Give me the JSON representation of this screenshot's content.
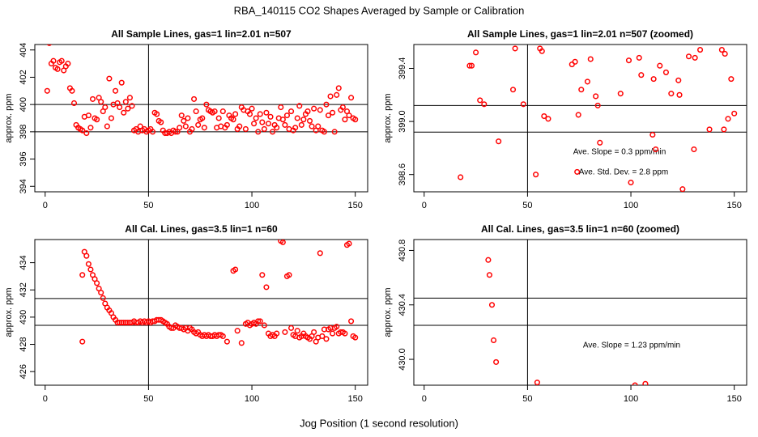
{
  "title": "RBA_140115 CO2 Shapes Averaged by Sample or Calibration",
  "x_label": "Jog Position (1 second resolution)",
  "chart_data": [
    {
      "type": "scatter",
      "title": "All Sample Lines, gas=1 lin=2.01 n=507",
      "y_label": "approx. ppm",
      "color": "#ff0000",
      "xlim": [
        -5,
        156
      ],
      "xticks": [
        0,
        50,
        100,
        150
      ],
      "ylim": [
        393.6,
        404.4
      ],
      "yticks": [
        394,
        396,
        398,
        400,
        402,
        404
      ],
      "hlines": [
        398,
        400
      ],
      "vlines": [
        50
      ],
      "x": [
        1,
        2,
        3,
        4,
        5,
        6,
        7,
        8,
        9,
        10,
        11,
        12,
        13,
        14,
        15,
        16,
        17,
        18,
        19,
        20,
        21,
        22,
        23,
        24,
        25,
        26,
        27,
        28,
        29,
        30,
        31,
        32,
        33,
        34,
        35,
        36,
        37,
        38,
        39,
        40,
        41,
        42,
        43,
        44,
        45,
        46,
        47,
        48,
        49,
        50,
        51,
        52,
        53,
        54,
        55,
        56,
        57,
        58,
        59,
        60,
        61,
        62,
        63,
        64,
        65,
        66,
        67,
        68,
        69,
        70,
        71,
        72,
        73,
        74,
        75,
        76,
        77,
        78,
        79,
        80,
        81,
        82,
        83,
        84,
        85,
        86,
        87,
        88,
        89,
        90,
        91,
        92,
        93,
        94,
        95,
        96,
        97,
        98,
        99,
        100,
        101,
        102,
        103,
        104,
        105,
        106,
        107,
        108,
        109,
        110,
        111,
        112,
        113,
        114,
        115,
        116,
        117,
        118,
        119,
        120,
        121,
        122,
        123,
        124,
        125,
        126,
        127,
        128,
        129,
        130,
        131,
        132,
        133,
        134,
        135,
        136,
        137,
        138,
        139,
        140,
        141,
        142,
        143,
        144,
        145,
        146,
        147,
        148,
        149,
        150
      ],
      "values": [
        401.0,
        404.5,
        403.0,
        403.2,
        402.7,
        402.6,
        403.1,
        403.2,
        402.5,
        402.8,
        403.0,
        401.2,
        401.0,
        400.1,
        398.5,
        398.3,
        398.2,
        398.1,
        399.1,
        397.9,
        399.2,
        398.3,
        400.4,
        399.0,
        398.9,
        400.5,
        400.2,
        399.5,
        399.8,
        398.4,
        401.9,
        399.0,
        400.0,
        401.0,
        400.1,
        399.8,
        401.6,
        399.4,
        400.2,
        399.7,
        400.5,
        399.9,
        398.1,
        398.2,
        398.0,
        398.4,
        398.1,
        398.2,
        398.0,
        398.1,
        398.2,
        398.0,
        399.4,
        399.3,
        398.8,
        398.7,
        398.1,
        397.9,
        397.9,
        398.0,
        397.9,
        398.1,
        398.0,
        398.0,
        398.3,
        399.2,
        398.8,
        398.4,
        399.0,
        398.0,
        398.2,
        400.4,
        399.5,
        398.5,
        398.9,
        399.0,
        398.3,
        400.0,
        399.6,
        399.5,
        399.4,
        399.5,
        398.3,
        399.0,
        398.4,
        399.5,
        398.3,
        398.5,
        399.2,
        399.0,
        398.9,
        399.3,
        398.2,
        398.4,
        399.8,
        399.6,
        398.2,
        399.5,
        399.3,
        399.7,
        398.6,
        399.0,
        398.0,
        399.3,
        398.7,
        398.2,
        399.4,
        398.6,
        399.1,
        398.0,
        398.5,
        398.3,
        399.0,
        399.8,
        398.9,
        398.5,
        399.2,
        398.2,
        399.5,
        398.1,
        398.3,
        399.0,
        399.9,
        398.5,
        398.9,
        399.3,
        399.5,
        398.8,
        398.4,
        399.7,
        398.1,
        398.4,
        399.6,
        398.1,
        398.0,
        400.0,
        399.2,
        400.6,
        399.4,
        398.0,
        400.7,
        401.2,
        399.6,
        399.8,
        398.9,
        399.5,
        399.2,
        400.5,
        399.0,
        398.9
      ]
    },
    {
      "type": "scatter",
      "title": "All Sample Lines, gas=1 lin=2.01 n=507 (zoomed)",
      "y_label": "approx. ppm",
      "color": "#ff0000",
      "xlim": [
        -5,
        156
      ],
      "xticks": [
        0,
        50,
        100,
        150
      ],
      "ylim": [
        398.47,
        399.58
      ],
      "yticks": [
        398.6,
        {
          "value": 399,
          "label": "399.0"
        },
        399.4
      ],
      "hlines": [
        398.92,
        399.12
      ],
      "vlines": [
        50
      ],
      "annotations": [
        "Ave. Slope = 0.3 ppm/min",
        "Ave. Std. Dev. = 2.8 ppm"
      ],
      "x": [
        17.6,
        22,
        23,
        25,
        27,
        29,
        36,
        43,
        44,
        48,
        54,
        56,
        57,
        58,
        60,
        71.5,
        73,
        74.6,
        76,
        74,
        79,
        80.5,
        83,
        84,
        85,
        95,
        99,
        100,
        104,
        105,
        110.5,
        111,
        112,
        114,
        117,
        119.5,
        123,
        123.5,
        125,
        130.5,
        131,
        133.5,
        138,
        144,
        145.5,
        145,
        147,
        148.5,
        150,
        128
      ],
      "values": [
        398.58,
        399.42,
        399.42,
        399.52,
        399.16,
        399.13,
        398.85,
        399.24,
        399.55,
        399.13,
        398.6,
        399.55,
        399.53,
        399.04,
        399.02,
        399.43,
        399.45,
        399.05,
        399.24,
        398.62,
        399.3,
        399.47,
        399.19,
        399.12,
        398.84,
        399.21,
        399.46,
        398.54,
        399.48,
        399.35,
        398.9,
        399.32,
        398.79,
        399.42,
        399.37,
        399.21,
        399.31,
        399.2,
        398.49,
        398.79,
        399.48,
        399.54,
        398.94,
        399.54,
        399.51,
        398.94,
        399.02,
        399.32,
        399.06,
        399.49
      ]
    },
    {
      "type": "scatter",
      "title": "All Cal. Lines, gas=3.5 lin=1 n=60",
      "y_label": "approx. ppm",
      "color": "#ff0000",
      "xlim": [
        -5,
        156
      ],
      "xticks": [
        0,
        50,
        100,
        150
      ],
      "ylim": [
        425.0,
        435.7
      ],
      "yticks": [
        426,
        428,
        430,
        432,
        434
      ],
      "hlines": [
        429.4,
        431.37
      ],
      "vlines": [
        50
      ],
      "x": [
        18,
        18,
        19,
        20,
        21,
        22,
        23,
        24,
        25,
        26,
        27,
        28,
        29,
        30,
        31,
        32,
        33,
        34,
        35,
        36,
        37,
        38,
        39,
        40,
        41,
        42,
        43,
        44,
        45,
        46,
        47,
        48,
        49,
        50,
        51,
        52,
        53,
        54,
        55,
        56,
        57,
        58,
        59,
        60,
        61,
        62,
        63,
        64,
        65,
        66,
        67,
        68,
        69,
        70,
        71,
        72,
        73,
        74,
        75,
        76,
        77,
        78,
        79,
        80,
        81,
        82,
        83,
        84,
        85,
        86,
        88,
        91,
        92,
        93,
        95,
        97,
        98,
        99,
        100,
        101,
        102,
        103,
        104,
        105,
        106,
        107,
        108,
        109,
        110,
        111,
        112,
        114,
        115,
        116,
        117,
        118,
        119,
        120,
        121,
        122,
        123,
        124,
        125,
        126,
        127,
        128,
        129,
        130,
        131,
        132,
        133,
        134,
        135,
        136,
        137,
        138,
        139,
        140,
        141,
        142,
        143,
        144,
        145,
        146,
        147,
        148,
        149,
        150
      ],
      "values": [
        428.2,
        433.1,
        434.8,
        434.5,
        433.9,
        433.5,
        433.1,
        432.8,
        432.5,
        432.1,
        431.8,
        431.4,
        431.0,
        430.7,
        430.5,
        430.3,
        430.0,
        429.8,
        429.6,
        429.6,
        429.6,
        429.6,
        429.6,
        429.6,
        429.6,
        429.6,
        429.7,
        429.6,
        429.6,
        429.7,
        429.6,
        429.7,
        429.6,
        429.7,
        429.6,
        429.7,
        429.7,
        429.8,
        429.8,
        429.8,
        429.7,
        429.6,
        429.5,
        429.3,
        429.2,
        429.2,
        429.4,
        429.3,
        429.2,
        429.2,
        429.1,
        429.2,
        429.0,
        429.2,
        429.1,
        428.9,
        428.8,
        428.9,
        428.7,
        428.6,
        428.7,
        428.6,
        428.7,
        428.6,
        428.6,
        428.7,
        428.6,
        428.7,
        428.7,
        428.6,
        428.2,
        433.4,
        433.5,
        429.0,
        428.1,
        429.5,
        429.6,
        429.4,
        429.5,
        429.6,
        429.5,
        429.7,
        429.7,
        433.1,
        429.4,
        432.2,
        428.8,
        428.6,
        428.7,
        428.6,
        428.8,
        435.6,
        435.5,
        428.9,
        433.0,
        433.1,
        429.2,
        428.7,
        428.6,
        429.0,
        428.5,
        428.6,
        428.8,
        428.6,
        428.5,
        428.4,
        428.6,
        428.9,
        428.2,
        428.5,
        434.7,
        428.6,
        429.1,
        428.4,
        429.1,
        429.2,
        428.8,
        429.2,
        429.3,
        428.8,
        428.9,
        428.9,
        428.8,
        435.3,
        435.4,
        429.7,
        428.6,
        428.5
      ]
    },
    {
      "type": "scatter",
      "title": "All Cal. Lines, gas=3.5 lin=1 n=60 (zoomed)",
      "y_label": "approx. ppm",
      "color": "#ff0000",
      "xlim": [
        -5,
        156
      ],
      "xticks": [
        0,
        50,
        100,
        150
      ],
      "ylim": [
        429.81,
        430.88
      ],
      "yticks": [
        {
          "value": 430,
          "label": "430.0"
        },
        430.4,
        430.8
      ],
      "hlines": [
        430.25,
        430.45
      ],
      "vlines": [
        50
      ],
      "annotations": [
        "Ave. Slope = 1.23 ppm/min"
      ],
      "x": [
        31,
        31.6,
        32.8,
        33.6,
        34.8,
        54.7,
        102,
        107
      ],
      "values": [
        430.73,
        430.62,
        430.4,
        430.14,
        429.98,
        429.83,
        429.81,
        429.82
      ]
    }
  ]
}
